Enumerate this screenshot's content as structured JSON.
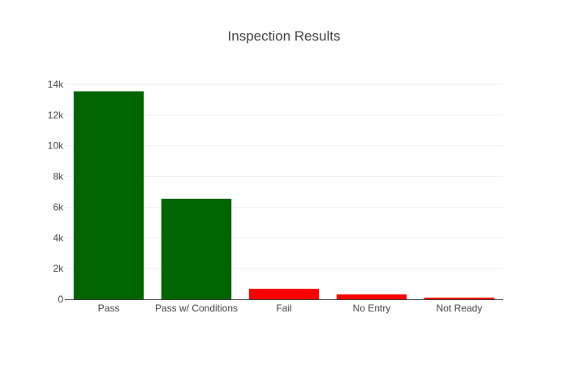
{
  "chart_data": {
    "type": "bar",
    "title": "Inspection Results",
    "xlabel": "",
    "ylabel": "",
    "categories": [
      "Pass",
      "Pass w/ Conditions",
      "Fail",
      "No Entry",
      "Not Ready"
    ],
    "values": [
      13550,
      6550,
      680,
      320,
      110
    ],
    "bar_colors": [
      "#006400",
      "#006400",
      "#ff0000",
      "#ff0000",
      "#ff0000"
    ],
    "ylim": [
      0,
      14000
    ],
    "yticks": [
      0,
      2000,
      4000,
      6000,
      8000,
      10000,
      12000,
      14000
    ],
    "ytick_labels": [
      "0",
      "2k",
      "4k",
      "6k",
      "8k",
      "10k",
      "12k",
      "14k"
    ],
    "grid": true,
    "legend": false
  }
}
